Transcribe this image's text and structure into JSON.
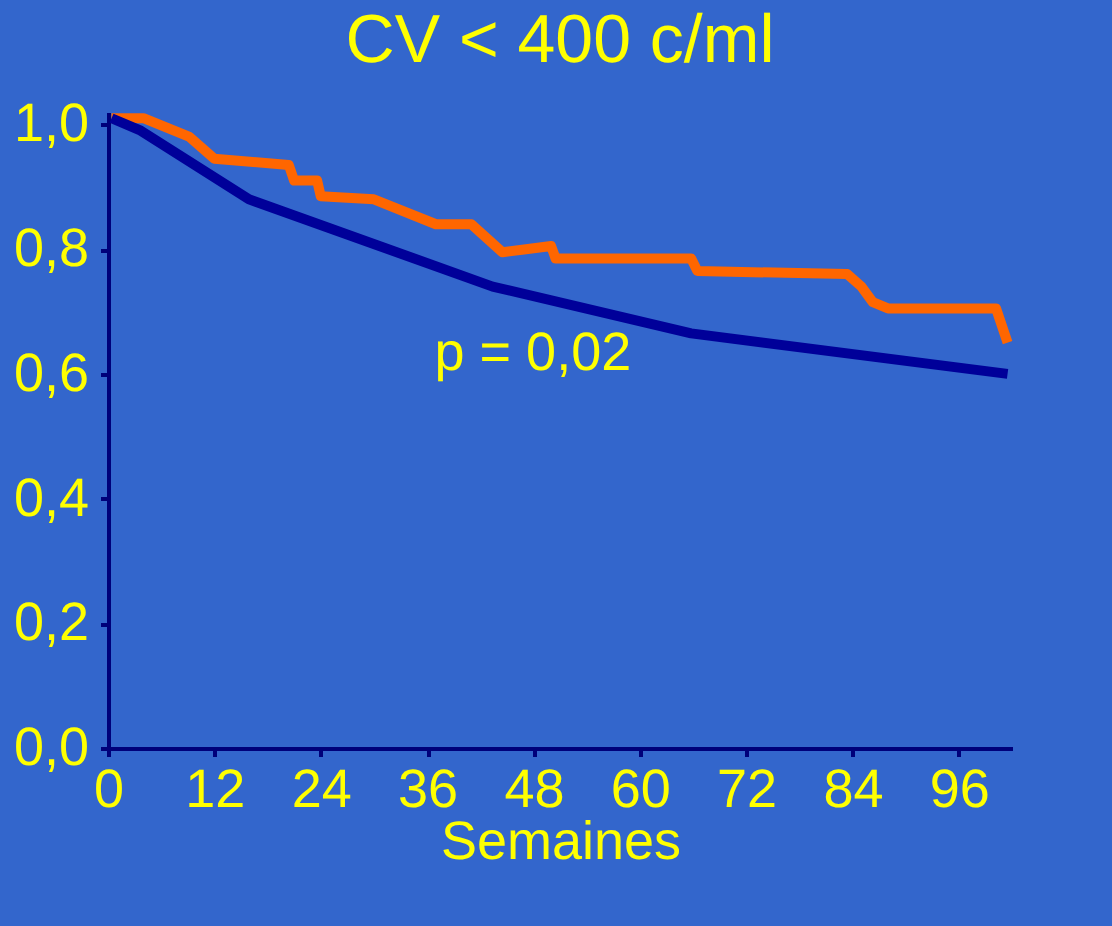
{
  "chart_data": {
    "type": "line",
    "title": "CV < 400 c/ml",
    "xlabel": "Semaines",
    "annotations": [
      "p = 0,02"
    ],
    "xlim": [
      0,
      102
    ],
    "xticks": [
      0,
      12,
      24,
      36,
      48,
      60,
      72,
      84,
      96
    ],
    "ylim": [
      0,
      1.02
    ],
    "yticks": [
      {
        "value": 0,
        "label": "0,0"
      },
      {
        "value": 0.2,
        "label": "0,2"
      },
      {
        "value": 0.4,
        "label": "0,4"
      },
      {
        "value": 0.6,
        "label": "0,6"
      },
      {
        "value": 0.8,
        "label": "0,8"
      },
      {
        "value": 1,
        "label": "1,0"
      }
    ],
    "grid": false,
    "legend": false,
    "series": [
      {
        "color": "#ff6600",
        "x": [
          0.4,
          4,
          9.2,
          12,
          20.4,
          21,
          23.6,
          24,
          30,
          37,
          41,
          44.5,
          50,
          50.5,
          65.8,
          66.5,
          83.4,
          85,
          86.3,
          88,
          100.2,
          101.5
        ],
        "values": [
          1.01,
          1.01,
          0.98,
          0.945,
          0.935,
          0.91,
          0.91,
          0.885,
          0.88,
          0.84,
          0.84,
          0.795,
          0.805,
          0.785,
          0.785,
          0.765,
          0.76,
          0.74,
          0.715,
          0.705,
          0.705,
          0.65
        ]
      },
      {
        "color": "#000099",
        "x": [
          0.4,
          3.7,
          15.9,
          43.4,
          65.8,
          101.5
        ],
        "values": [
          1.01,
          0.99,
          0.88,
          0.74,
          0.665,
          0.6
        ]
      }
    ]
  }
}
